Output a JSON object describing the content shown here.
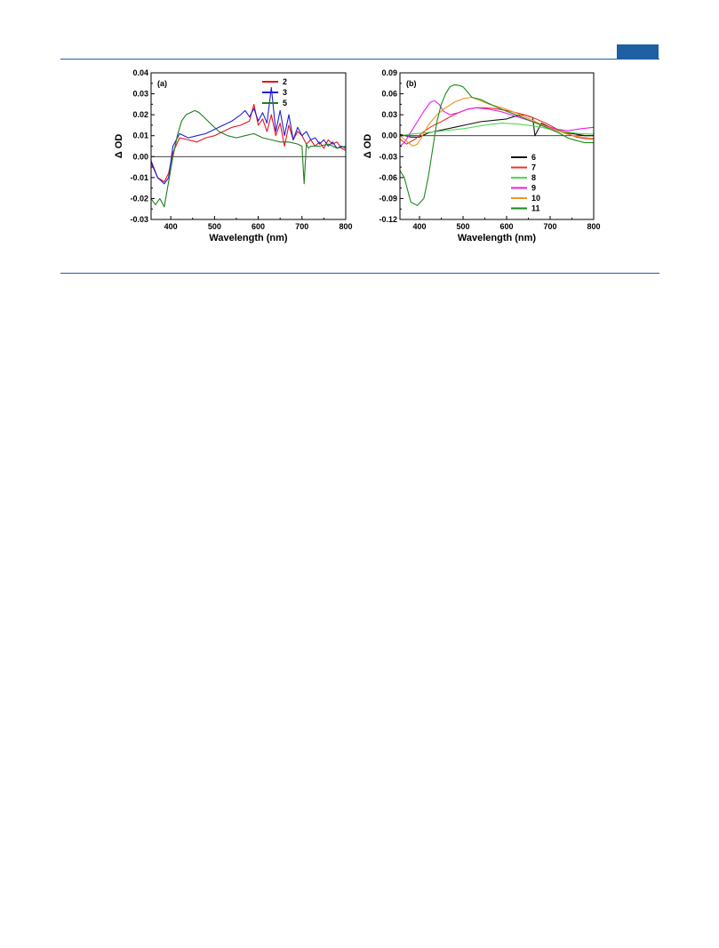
{
  "page": {
    "accent_color": "#1f5fa3"
  },
  "chart_data": [
    {
      "panel_label": "(a)",
      "type": "line",
      "xlabel": "Wavelength (nm)",
      "ylabel": "Δ OD",
      "xlim": [
        355,
        800
      ],
      "ylim": [
        -0.03,
        0.04
      ],
      "xticks": [
        400,
        500,
        600,
        700,
        800
      ],
      "yticks": [
        -0.03,
        -0.02,
        -0.01,
        0.0,
        0.01,
        0.02,
        0.03,
        0.04
      ],
      "ytick_labels": [
        "-0.03",
        "-0.02",
        "-0.01",
        "0.00",
        "0.01",
        "0.02",
        "0.03",
        "0.04"
      ],
      "zero_line": true,
      "legend_position": "top-right",
      "series": [
        {
          "name": "2",
          "color": "#e8141c",
          "x": [
            355,
            370,
            385,
            395,
            405,
            420,
            440,
            460,
            480,
            500,
            520,
            540,
            560,
            580,
            590,
            600,
            610,
            620,
            630,
            640,
            650,
            660,
            670,
            680,
            690,
            700,
            710,
            720,
            730,
            740,
            750,
            760,
            770,
            780,
            790,
            800
          ],
          "y": [
            -0.003,
            -0.01,
            -0.012,
            -0.008,
            0.002,
            0.009,
            0.008,
            0.007,
            0.009,
            0.01,
            0.012,
            0.014,
            0.015,
            0.017,
            0.025,
            0.015,
            0.018,
            0.012,
            0.02,
            0.01,
            0.016,
            0.005,
            0.015,
            0.008,
            0.012,
            0.01,
            0.006,
            0.008,
            0.005,
            0.007,
            0.004,
            0.008,
            0.006,
            0.007,
            0.004,
            0.003
          ]
        },
        {
          "name": "3",
          "color": "#1f1fd6",
          "x": [
            355,
            370,
            385,
            395,
            405,
            420,
            440,
            460,
            480,
            500,
            520,
            540,
            560,
            570,
            580,
            590,
            600,
            610,
            620,
            630,
            640,
            650,
            660,
            670,
            680,
            690,
            700,
            710,
            720,
            730,
            740,
            750,
            760,
            770,
            780,
            790,
            800
          ],
          "y": [
            -0.002,
            -0.01,
            -0.013,
            -0.01,
            0.005,
            0.011,
            0.009,
            0.01,
            0.011,
            0.013,
            0.015,
            0.017,
            0.02,
            0.022,
            0.019,
            0.023,
            0.017,
            0.021,
            0.016,
            0.033,
            0.012,
            0.022,
            0.01,
            0.02,
            0.008,
            0.014,
            0.01,
            0.012,
            0.008,
            0.009,
            0.006,
            0.008,
            0.005,
            0.007,
            0.004,
            0.005,
            0.004
          ]
        },
        {
          "name": "5",
          "color": "#1e7f1e",
          "x": [
            355,
            365,
            375,
            385,
            395,
            405,
            415,
            425,
            435,
            445,
            455,
            465,
            475,
            490,
            510,
            530,
            550,
            570,
            590,
            610,
            630,
            650,
            670,
            690,
            700,
            705,
            710,
            715,
            720,
            740,
            760,
            780,
            800
          ],
          "y": [
            -0.02,
            -0.023,
            -0.02,
            -0.024,
            -0.012,
            0.0,
            0.01,
            0.017,
            0.02,
            0.021,
            0.022,
            0.021,
            0.019,
            0.016,
            0.012,
            0.01,
            0.009,
            0.01,
            0.011,
            0.009,
            0.008,
            0.007,
            0.007,
            0.006,
            0.005,
            -0.013,
            0.006,
            0.004,
            0.005,
            0.005,
            0.006,
            0.004,
            0.005
          ]
        }
      ]
    },
    {
      "panel_label": "(b)",
      "type": "line",
      "xlabel": "Wavelength (nm)",
      "ylabel": "Δ OD",
      "xlim": [
        355,
        800
      ],
      "ylim": [
        -0.12,
        0.09
      ],
      "xticks": [
        400,
        500,
        600,
        700,
        800
      ],
      "yticks": [
        -0.12,
        -0.09,
        -0.06,
        -0.03,
        0.0,
        0.03,
        0.06,
        0.09
      ],
      "ytick_labels": [
        "-0.12",
        "-0.09",
        "-0.06",
        "-0.03",
        "0.00",
        "0.03",
        "0.06",
        "0.09"
      ],
      "zero_line": true,
      "legend_position": "bottom-right",
      "series": [
        {
          "name": "6",
          "color": "#111111",
          "x": [
            355,
            380,
            400,
            420,
            450,
            480,
            510,
            540,
            570,
            600,
            620,
            640,
            660,
            665,
            680,
            700,
            720,
            740,
            760,
            780,
            800
          ],
          "y": [
            0.002,
            -0.002,
            -0.002,
            0.004,
            0.008,
            0.012,
            0.016,
            0.02,
            0.022,
            0.024,
            0.028,
            0.03,
            0.026,
            0.0,
            0.018,
            0.012,
            0.008,
            0.004,
            0.002,
            0.0,
            0.0
          ]
        },
        {
          "name": "7",
          "color": "#f0302a",
          "x": [
            355,
            370,
            390,
            410,
            430,
            450,
            470,
            490,
            510,
            530,
            550,
            570,
            600,
            630,
            660,
            690,
            720,
            740,
            760,
            780,
            800
          ],
          "y": [
            -0.005,
            -0.012,
            -0.005,
            0.006,
            0.014,
            0.02,
            0.027,
            0.033,
            0.038,
            0.04,
            0.04,
            0.039,
            0.036,
            0.032,
            0.026,
            0.018,
            0.008,
            0.003,
            -0.002,
            -0.004,
            -0.005
          ]
        },
        {
          "name": "8",
          "color": "#4fd84f",
          "x": [
            355,
            380,
            410,
            440,
            470,
            500,
            530,
            560,
            590,
            620,
            650,
            680,
            710,
            740,
            770,
            800
          ],
          "y": [
            0.0,
            0.002,
            0.004,
            0.006,
            0.008,
            0.01,
            0.013,
            0.016,
            0.018,
            0.017,
            0.015,
            0.012,
            0.008,
            0.005,
            0.003,
            0.002
          ]
        },
        {
          "name": "9",
          "color": "#e81ee8",
          "x": [
            355,
            365,
            380,
            395,
            410,
            425,
            435,
            445,
            455,
            470,
            490,
            510,
            530,
            560,
            590,
            620,
            650,
            680,
            710,
            740,
            770,
            800
          ],
          "y": [
            -0.015,
            -0.01,
            0.005,
            0.02,
            0.035,
            0.048,
            0.05,
            0.045,
            0.035,
            0.03,
            0.033,
            0.038,
            0.04,
            0.038,
            0.034,
            0.028,
            0.022,
            0.016,
            0.01,
            0.007,
            0.01,
            0.012
          ]
        },
        {
          "name": "10",
          "color": "#f5922a",
          "x": [
            355,
            370,
            385,
            395,
            405,
            420,
            440,
            460,
            480,
            500,
            520,
            540,
            560,
            590,
            620,
            650,
            680,
            710,
            740,
            770,
            800
          ],
          "y": [
            0.0,
            -0.008,
            -0.015,
            -0.012,
            -0.002,
            0.015,
            0.03,
            0.04,
            0.048,
            0.053,
            0.055,
            0.05,
            0.045,
            0.04,
            0.033,
            0.025,
            0.016,
            0.008,
            0.002,
            -0.002,
            -0.004
          ]
        },
        {
          "name": "11",
          "color": "#1a8a1a",
          "x": [
            355,
            365,
            380,
            395,
            410,
            420,
            430,
            440,
            450,
            460,
            470,
            480,
            490,
            500,
            510,
            520,
            540,
            560,
            580,
            600,
            630,
            660,
            690,
            720,
            740,
            760,
            780,
            800
          ],
          "y": [
            -0.05,
            -0.06,
            -0.095,
            -0.1,
            -0.09,
            -0.06,
            -0.02,
            0.02,
            0.045,
            0.06,
            0.07,
            0.073,
            0.072,
            0.07,
            0.063,
            0.055,
            0.052,
            0.046,
            0.04,
            0.035,
            0.028,
            0.02,
            0.012,
            0.004,
            -0.003,
            -0.007,
            -0.01,
            -0.01
          ]
        }
      ]
    }
  ]
}
